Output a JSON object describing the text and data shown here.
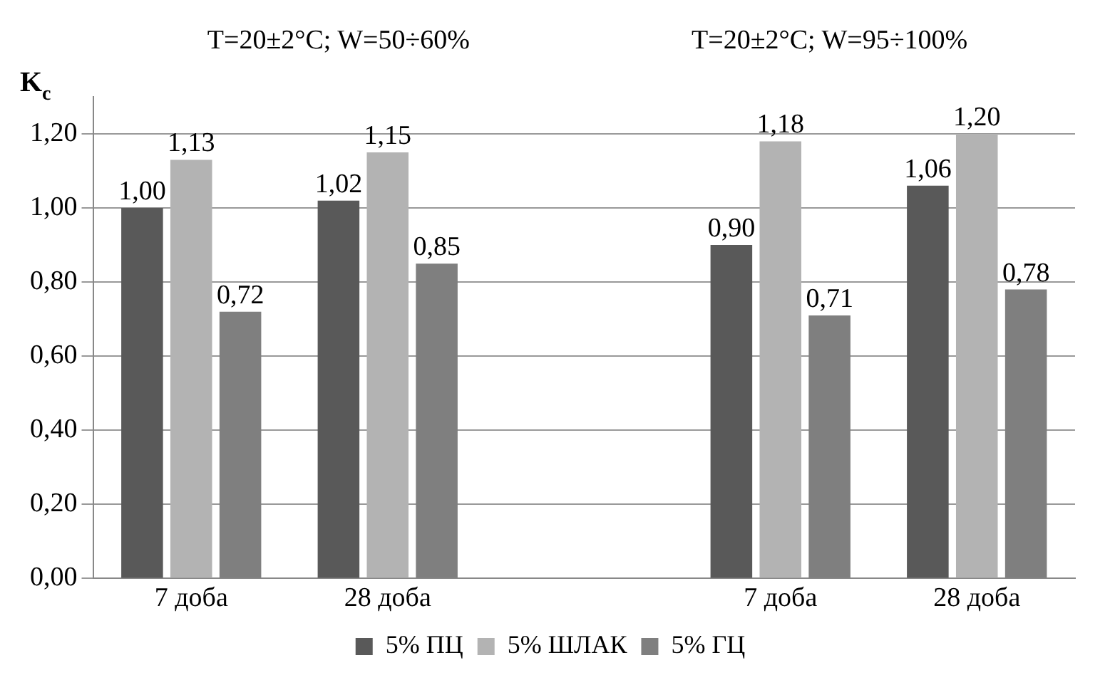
{
  "chart_data": {
    "type": "bar",
    "ylabel": "K$_{c}$",
    "annotations": [
      "T=20±2°C; W=50÷60%",
      "T=20±2°C; W=95÷100%"
    ],
    "categories": [
      "7 доба",
      "28 доба",
      null,
      "7 доба",
      "28 доба"
    ],
    "series": [
      {
        "name": "5% ПЦ",
        "color": "#595959",
        "values": [
          1.0,
          1.02,
          null,
          0.9,
          1.06
        ],
        "value_labels": [
          "1,00",
          "1,02",
          null,
          "0,90",
          "1,06"
        ]
      },
      {
        "name": "5% ШЛАК",
        "color": "#b3b3b3",
        "values": [
          1.13,
          1.15,
          null,
          1.18,
          1.2
        ],
        "value_labels": [
          "1,13",
          "1,15",
          null,
          "1,18",
          "1,20"
        ]
      },
      {
        "name": "5% ГЦ",
        "color": "#7f7f7f",
        "values": [
          0.72,
          0.85,
          null,
          0.71,
          0.78
        ],
        "value_labels": [
          "0,72",
          "0,85",
          null,
          "0,71",
          "0,78"
        ]
      }
    ],
    "ylim": [
      0,
      1.3
    ],
    "yticks": [
      {
        "value": 0,
        "label": "0,00"
      },
      {
        "value": 0.2,
        "label": "0,20"
      },
      {
        "value": 0.4,
        "label": "0,40"
      },
      {
        "value": 0.6,
        "label": "0,60"
      },
      {
        "value": 0.8,
        "label": "0,80"
      },
      {
        "value": 1.0,
        "label": "1,00"
      },
      {
        "value": 1.2,
        "label": "1,20"
      }
    ],
    "grid": "y",
    "legend": "bottom"
  }
}
